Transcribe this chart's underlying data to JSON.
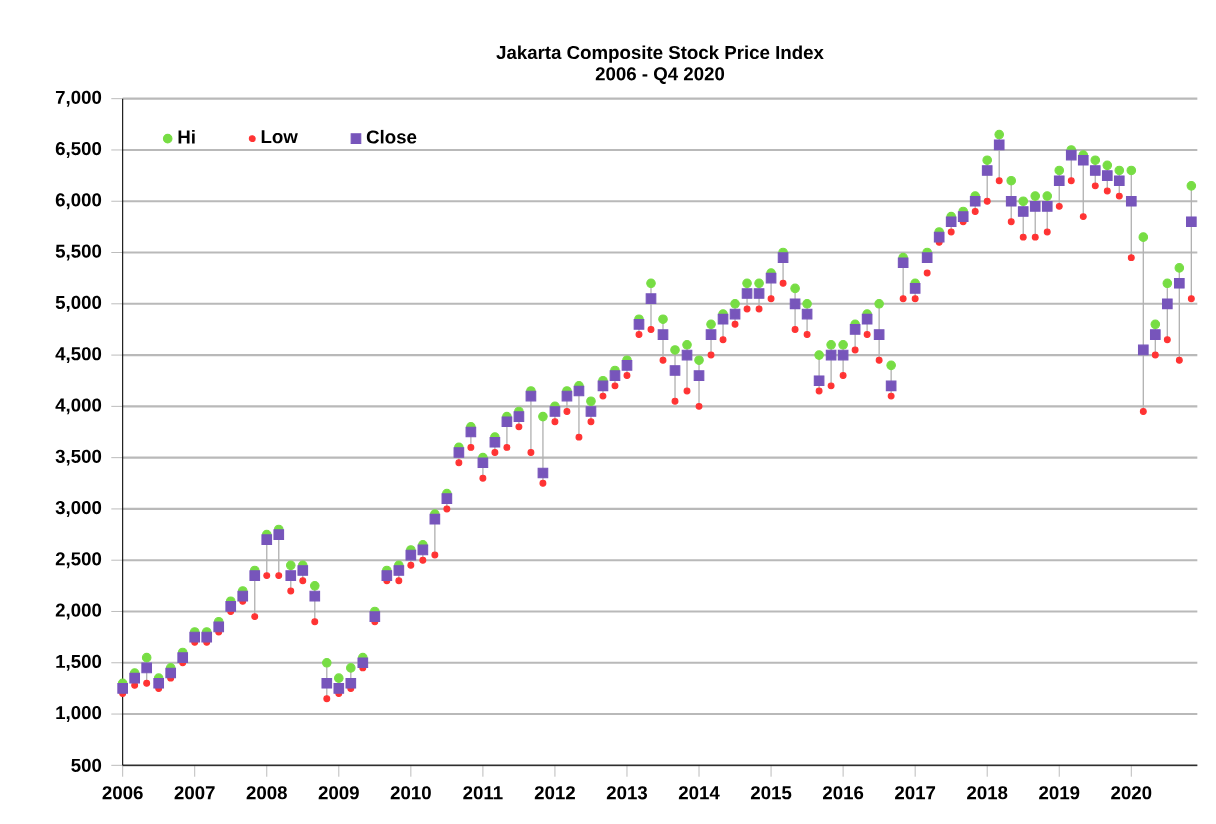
{
  "chart_data": {
    "type": "scatter",
    "title": "Jakarta Composite Stock Price Index",
    "subtitle": "2006 - Q4 2020",
    "x": [
      "2006-01",
      "2006-03",
      "2006-05",
      "2006-07",
      "2006-09",
      "2006-11",
      "2007-01",
      "2007-03",
      "2007-05",
      "2007-07",
      "2007-09",
      "2007-11",
      "2008-01",
      "2008-03",
      "2008-05",
      "2008-07",
      "2008-09",
      "2008-11",
      "2009-01",
      "2009-03",
      "2009-05",
      "2009-07",
      "2009-09",
      "2009-11",
      "2010-01",
      "2010-03",
      "2010-05",
      "2010-07",
      "2010-09",
      "2010-11",
      "2011-01",
      "2011-03",
      "2011-05",
      "2011-07",
      "2011-09",
      "2011-11",
      "2012-01",
      "2012-03",
      "2012-05",
      "2012-07",
      "2012-09",
      "2012-11",
      "2013-01",
      "2013-03",
      "2013-05",
      "2013-07",
      "2013-09",
      "2013-11",
      "2014-01",
      "2014-03",
      "2014-05",
      "2014-07",
      "2014-09",
      "2014-11",
      "2015-01",
      "2015-03",
      "2015-05",
      "2015-07",
      "2015-09",
      "2015-11",
      "2016-01",
      "2016-03",
      "2016-05",
      "2016-07",
      "2016-09",
      "2016-11",
      "2017-01",
      "2017-03",
      "2017-05",
      "2017-07",
      "2017-09",
      "2017-11",
      "2018-01",
      "2018-03",
      "2018-05",
      "2018-07",
      "2018-09",
      "2018-11",
      "2019-01",
      "2019-03",
      "2019-05",
      "2019-07",
      "2019-09",
      "2019-11",
      "2020-01",
      "2020-03",
      "2020-05",
      "2020-07",
      "2020-09",
      "2020-11"
    ],
    "series": [
      {
        "name": "Hi",
        "color": "#77dd44",
        "marker": "circle",
        "values": [
          1300,
          1400,
          1550,
          1350,
          1450,
          1600,
          1800,
          1800,
          1900,
          2100,
          2200,
          2400,
          2750,
          2800,
          2450,
          2450,
          2250,
          1500,
          1350,
          1450,
          1550,
          2000,
          2400,
          2450,
          2600,
          2650,
          2950,
          3150,
          3600,
          3800,
          3500,
          3700,
          3900,
          3950,
          4150,
          3900,
          4000,
          4150,
          4200,
          4050,
          4250,
          4350,
          4450,
          4850,
          5200,
          4850,
          4550,
          4600,
          4450,
          4800,
          4900,
          5000,
          5200,
          5200,
          5300,
          5500,
          5150,
          5000,
          4500,
          4600,
          4600,
          4800,
          4900,
          5000,
          4400,
          5450,
          5200,
          5500,
          5700,
          5850,
          5900,
          6050,
          6400,
          6650,
          6200,
          6000,
          6050,
          6050,
          6300,
          6500,
          6450,
          6400,
          6350,
          6300,
          6300,
          5650,
          4800,
          5200,
          5350,
          6150
        ]
      },
      {
        "name": "Low",
        "color": "#ff3333",
        "marker": "circle",
        "values": [
          1200,
          1280,
          1300,
          1250,
          1350,
          1500,
          1700,
          1700,
          1800,
          2000,
          2100,
          1950,
          2350,
          2350,
          2200,
          2300,
          1900,
          1150,
          1200,
          1250,
          1450,
          1900,
          2300,
          2300,
          2450,
          2500,
          2550,
          3000,
          3450,
          3600,
          3300,
          3550,
          3600,
          3800,
          3550,
          3250,
          3850,
          3950,
          3700,
          3850,
          4100,
          4200,
          4300,
          4700,
          4750,
          4450,
          4050,
          4150,
          4000,
          4500,
          4650,
          4800,
          4950,
          4950,
          5050,
          5200,
          4750,
          4700,
          4150,
          4200,
          4300,
          4550,
          4700,
          4450,
          4100,
          5050,
          5050,
          5300,
          5600,
          5700,
          5800,
          5900,
          6000,
          6200,
          5800,
          5650,
          5650,
          5700,
          5950,
          6200,
          5850,
          6150,
          6100,
          6050,
          5450,
          3950,
          4500,
          4650,
          4450,
          5050
        ]
      },
      {
        "name": "Close",
        "color": "#7755bb",
        "marker": "square",
        "errors": [
          [
            1200,
            1300
          ],
          null,
          [
            1300,
            1550
          ],
          [
            1250,
            1350
          ],
          [
            1350,
            1450
          ],
          [
            1500,
            1600
          ],
          [
            1700,
            1800
          ],
          [
            1700,
            1800
          ],
          [
            1800,
            1900
          ],
          [
            2000,
            2100
          ],
          [
            2100,
            2200
          ],
          [
            1950,
            2400
          ],
          [
            2350,
            2750
          ],
          [
            2350,
            2800
          ],
          [
            2200,
            2450
          ],
          [
            2300,
            2450
          ],
          [
            1900,
            2250
          ],
          [
            1150,
            1500
          ],
          null,
          [
            1250,
            1450
          ],
          [
            1450,
            1550
          ],
          null,
          null,
          [
            2300,
            2450
          ],
          [
            2450,
            2600
          ],
          [
            2500,
            2650
          ],
          [
            2550,
            2950
          ],
          [
            3000,
            3150
          ],
          [
            3450,
            3600
          ],
          [
            3600,
            3800
          ],
          [
            3300,
            3500
          ],
          [
            3550,
            3700
          ],
          [
            3600,
            3900
          ],
          [
            3800,
            3950
          ],
          [
            3550,
            4150
          ],
          [
            3250,
            3900
          ],
          [
            3850,
            4000
          ],
          [
            3950,
            4150
          ],
          [
            3700,
            4200
          ],
          [
            3850,
            4050
          ],
          [
            4100,
            4250
          ],
          [
            4200,
            4350
          ],
          [
            4300,
            4450
          ],
          [
            4700,
            4850
          ],
          [
            4750,
            5200
          ],
          [
            4450,
            4850
          ],
          [
            4050,
            4550
          ],
          [
            4150,
            4600
          ],
          [
            4000,
            4450
          ],
          [
            4500,
            4800
          ],
          [
            4650,
            4900
          ],
          [
            4800,
            5000
          ],
          [
            4950,
            5200
          ],
          [
            4950,
            5200
          ],
          [
            5050,
            5300
          ],
          [
            5200,
            5500
          ],
          [
            4750,
            5150
          ],
          [
            4700,
            5000
          ],
          [
            4150,
            4500
          ],
          [
            4200,
            4600
          ],
          [
            4300,
            4600
          ],
          [
            4550,
            4800
          ],
          [
            4700,
            4900
          ],
          [
            4450,
            5000
          ],
          [
            4100,
            4400
          ],
          [
            5050,
            5450
          ],
          [
            5050,
            5200
          ],
          null,
          [
            5600,
            5700
          ],
          [
            5700,
            5850
          ],
          null,
          [
            5900,
            6050
          ],
          [
            6000,
            6400
          ],
          [
            6200,
            6650
          ],
          [
            5800,
            6200
          ],
          [
            5650,
            6000
          ],
          [
            5650,
            6050
          ],
          [
            5700,
            6050
          ],
          [
            5950,
            6300
          ],
          [
            6200,
            6500
          ],
          [
            5850,
            6450
          ],
          [
            6150,
            6400
          ],
          [
            6100,
            6350
          ],
          [
            6050,
            6300
          ],
          [
            5450,
            6300
          ],
          [
            3950,
            5650
          ],
          [
            4500,
            4800
          ],
          [
            4650,
            5200
          ],
          [
            4450,
            5350
          ],
          [
            5050,
            6150
          ]
        ],
        "values": [
          1250,
          1350,
          1450,
          1300,
          1400,
          1550,
          1750,
          1750,
          1850,
          2050,
          2150,
          2350,
          2700,
          2750,
          2350,
          2400,
          2150,
          1300,
          1250,
          1300,
          1500,
          1950,
          2350,
          2400,
          2550,
          2600,
          2900,
          3100,
          3550,
          3750,
          3450,
          3650,
          3850,
          3900,
          4100,
          3350,
          3950,
          4100,
          4150,
          3950,
          4200,
          4300,
          4400,
          4800,
          5050,
          4700,
          4350,
          4500,
          4300,
          4700,
          4850,
          4900,
          5100,
          5100,
          5250,
          5450,
          5000,
          4900,
          4250,
          4500,
          4500,
          4750,
          4850,
          4700,
          4200,
          5400,
          5150,
          5450,
          5650,
          5800,
          5850,
          6000,
          6300,
          6550,
          6000,
          5900,
          5950,
          5950,
          6200,
          6450,
          6400,
          6300,
          6250,
          6200,
          6000,
          4550,
          4700,
          5000,
          5200,
          5800
        ]
      }
    ],
    "xlim": [
      "2006-01",
      "2020-12"
    ],
    "xticks": [
      "2006",
      "2007",
      "2008",
      "2009",
      "2010",
      "2011",
      "2012",
      "2013",
      "2014",
      "2015",
      "2016",
      "2017",
      "2018",
      "2019",
      "2020"
    ],
    "ylim": [
      500,
      7000
    ],
    "yticks": [
      {
        "value": 500,
        "label": "500"
      },
      {
        "value": 1000,
        "label": "1,000"
      },
      {
        "value": 1500,
        "label": "1,500"
      },
      {
        "value": 2000,
        "label": "2,000"
      },
      {
        "value": 2500,
        "label": "2,500"
      },
      {
        "value": 3000,
        "label": "3,000"
      },
      {
        "value": 3500,
        "label": "3,500"
      },
      {
        "value": 4000,
        "label": "4,000"
      },
      {
        "value": 4500,
        "label": "4,500"
      },
      {
        "value": 5000,
        "label": "5,000"
      },
      {
        "value": 5500,
        "label": "5,500"
      },
      {
        "value": 6000,
        "label": "6,000"
      },
      {
        "value": 6500,
        "label": "6,500"
      },
      {
        "value": 7000,
        "label": "7,000"
      }
    ],
    "grid": "y",
    "legend": "top left"
  }
}
